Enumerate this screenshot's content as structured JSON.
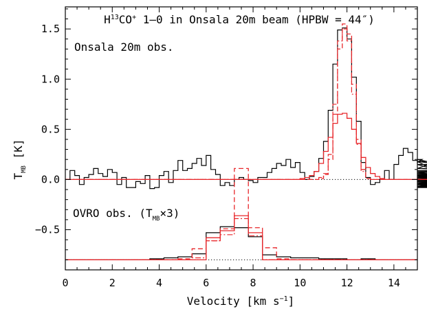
{
  "chart_data": {
    "type": "line",
    "title": {
      "prefix": "H",
      "superscript": "13",
      "middle": "CO",
      "superscript2": "+",
      "suffix": " 1–0 in Onsala 20m beam (HPBW = 44″)"
    },
    "xlabel": {
      "main": "Velocity [km s",
      "superscript": "−1",
      "close": "]"
    },
    "ylabel": {
      "main": "T",
      "subscript": "MB",
      "unit": " [K]"
    },
    "xlim": [
      0,
      15
    ],
    "ylim": [
      -0.9,
      1.72
    ],
    "x_ticks": [
      0,
      2,
      4,
      6,
      8,
      10,
      12,
      14
    ],
    "x_tick_labels": [
      "0",
      "2",
      "4",
      "6",
      "8",
      "10",
      "12",
      "14"
    ],
    "y_ticks": [
      -0.5,
      0.0,
      0.5,
      1.0,
      1.5
    ],
    "y_tick_labels": [
      "−0.5",
      "0.0",
      "0.5",
      "1.0",
      "1.5"
    ],
    "annotations": {
      "onsala": "Onsala 20m obs.",
      "ovro": {
        "prefix": "OVRO obs. (T",
        "subscript": "MB",
        "suffix": "×3)"
      }
    },
    "baselines": [
      {
        "name": "onsala-baseline",
        "y": 0.0
      },
      {
        "name": "ovro-baseline",
        "y": -0.8
      }
    ],
    "series": [
      {
        "key": "onsala-observed",
        "color": "#000000",
        "style": "solid",
        "width": 1.2,
        "offset": 0.0,
        "x_start": 0.0,
        "dv": 0.2,
        "values": [
          0.0,
          0.09,
          0.04,
          -0.05,
          0.02,
          0.05,
          0.11,
          0.06,
          0.03,
          0.1,
          0.07,
          -0.05,
          0.02,
          -0.08,
          -0.08,
          -0.02,
          -0.04,
          0.04,
          -0.09,
          -0.08,
          0.04,
          0.08,
          -0.03,
          0.09,
          0.19,
          0.09,
          0.11,
          0.16,
          0.21,
          0.14,
          0.24,
          0.1,
          0.05,
          -0.06,
          -0.03,
          -0.06,
          0.0,
          0.02,
          0.0,
          -0.01,
          -0.03,
          0.02,
          0.02,
          0.07,
          0.11,
          0.16,
          0.14,
          0.2,
          0.12,
          0.17,
          0.07,
          0.0,
          0.03,
          0.08,
          0.21,
          0.38,
          0.69,
          1.15,
          1.49,
          1.51,
          1.4,
          1.02,
          0.58,
          0.17,
          0.02,
          -0.05,
          -0.03,
          0.0,
          0.09,
          0.0,
          0.15,
          0.24,
          0.31,
          0.27,
          0.19,
          0.17,
          0.2,
          0.18,
          0.11,
          0.18,
          0.15,
          0.07,
          0.03,
          0.0,
          -0.08,
          0.02,
          0.0,
          -0.02,
          0.03,
          -0.03,
          -0.07,
          -0.08,
          0.05,
          -0.05,
          0.04,
          -0.01,
          -0.02,
          0.02,
          0.08,
          0.0,
          0.0,
          -0.04,
          0.03,
          0.0,
          -0.07,
          0.03,
          0.05,
          -0.05,
          0.0,
          -0.07,
          0.03,
          0.0,
          0.05,
          -0.04,
          0.03,
          0.0,
          -0.01,
          0.0,
          0.06,
          0.0,
          0.03,
          0.01,
          0.02,
          0.0,
          -0.06,
          0.08,
          0.01,
          -0.03,
          0.04,
          0.02,
          0.0,
          0.11,
          0.01,
          0.02,
          0.03,
          0.05,
          0.01,
          0.0,
          0.02,
          0.04,
          0.0,
          0.03,
          0.0,
          0.04,
          0.0,
          0.0,
          0.0,
          0.09,
          0.06,
          -0.02
        ]
      },
      {
        "key": "onsala-model-dashed",
        "color": "#e8262a",
        "style": "dashed",
        "width": 1.3,
        "offset": 0.0,
        "x_start": 0.0,
        "dv": 0.2,
        "values": [
          0,
          0,
          0,
          0,
          0,
          0,
          0,
          0,
          0,
          0,
          0,
          0,
          0,
          0,
          0,
          0,
          0,
          0,
          0,
          0,
          0,
          0,
          0,
          0,
          0,
          0,
          0,
          0,
          0,
          0,
          0,
          0,
          0,
          0,
          0,
          0,
          0,
          0,
          0,
          0,
          0,
          0,
          0,
          0,
          0,
          0,
          0,
          0,
          0,
          0,
          0,
          0,
          0,
          0,
          0.01,
          0.05,
          0.2,
          0.65,
          1.3,
          1.55,
          1.45,
          0.95,
          0.4,
          0.1,
          0.01,
          0,
          0,
          0,
          0,
          0,
          0,
          0,
          0,
          0,
          0,
          0,
          0,
          0,
          0,
          0
        ]
      },
      {
        "key": "onsala-model-solid",
        "color": "#e8262a",
        "style": "solid",
        "width": 1.3,
        "offset": 0.0,
        "x_start": 0.0,
        "dv": 0.2,
        "values": [
          0,
          0,
          0,
          0,
          0,
          0,
          0,
          0,
          0,
          0,
          0,
          0,
          0,
          0,
          0,
          0,
          0,
          0,
          0,
          0,
          0,
          0,
          0,
          0,
          0,
          0,
          0,
          0,
          0,
          0,
          0,
          0,
          0,
          0,
          0,
          0,
          0,
          0,
          0,
          0,
          0,
          0,
          0,
          0,
          0,
          0,
          0,
          0,
          0,
          0,
          0.01,
          0.02,
          0.04,
          0.08,
          0.16,
          0.28,
          0.42,
          0.56,
          0.65,
          0.66,
          0.61,
          0.5,
          0.36,
          0.22,
          0.12,
          0.06,
          0.03,
          0.01,
          0,
          0,
          0,
          0,
          0,
          0,
          0,
          0,
          0,
          0,
          0,
          0
        ]
      },
      {
        "key": "onsala-model-dashdot",
        "color": "#e8262a",
        "style": "dashdot",
        "width": 1.2,
        "offset": 0.0,
        "x_start": 0.0,
        "dv": 0.2,
        "values": [
          0,
          0,
          0,
          0,
          0,
          0,
          0,
          0,
          0,
          0,
          0,
          0,
          0,
          0,
          0,
          0,
          0,
          0,
          0,
          0,
          0,
          0,
          0,
          0,
          0,
          0,
          0,
          0,
          0,
          0,
          0,
          0,
          0,
          0,
          0,
          0,
          0,
          0,
          0,
          0,
          0,
          0,
          0,
          0,
          0,
          0,
          0,
          0,
          0,
          0,
          0,
          0,
          0,
          0,
          0.02,
          0.06,
          0.25,
          0.75,
          1.38,
          1.5,
          1.38,
          0.85,
          0.35,
          0.08,
          0.01,
          0,
          0,
          0,
          0,
          0,
          0,
          0,
          0,
          0,
          0,
          0,
          0,
          0,
          0,
          0
        ]
      },
      {
        "key": "ovro-observed",
        "color": "#000000",
        "style": "solid",
        "width": 1.2,
        "offset": -0.8,
        "x_start": 0.0,
        "dv": 0.6,
        "values": [
          0.0,
          0.0,
          0.0,
          0.0,
          0.0,
          0.0,
          0.01,
          0.02,
          0.03,
          0.06,
          0.27,
          0.33,
          0.32,
          0.23,
          0.05,
          0.03,
          0.02,
          0.02,
          0.01,
          0.01,
          0.0,
          0.01,
          0.0,
          0.0,
          0.0
        ]
      },
      {
        "key": "ovro-model-solid",
        "color": "#e8262a",
        "style": "solid",
        "width": 1.3,
        "offset": -0.8,
        "x_start": 0.0,
        "dv": 0.6,
        "values": [
          0,
          0,
          0,
          0,
          0,
          0,
          0,
          0,
          0,
          0.0,
          0.22,
          0.29,
          0.44,
          0.27,
          0.0,
          0,
          0,
          0,
          0,
          0,
          0,
          0,
          0,
          0,
          0
        ]
      },
      {
        "key": "ovro-model-dashed",
        "color": "#e8262a",
        "style": "dashed",
        "width": 1.3,
        "offset": -0.8,
        "x_start": 0.0,
        "dv": 0.6,
        "values": [
          0,
          0,
          0,
          0,
          0,
          0,
          0,
          0,
          0.01,
          0.11,
          0.19,
          0.31,
          0.91,
          0.32,
          0.12,
          0.01,
          0,
          0,
          0,
          0,
          0,
          0,
          0,
          0,
          0
        ]
      },
      {
        "key": "ovro-model-dashdot",
        "color": "#e8262a",
        "style": "dashdot",
        "width": 1.2,
        "offset": -0.8,
        "x_start": 0.0,
        "dv": 0.6,
        "values": [
          0,
          0,
          0,
          0,
          0,
          0,
          0,
          0,
          0,
          0.02,
          0.19,
          0.25,
          0.41,
          0.24,
          0.0,
          0,
          0,
          0,
          0,
          0,
          0,
          0,
          0,
          0,
          0
        ]
      }
    ]
  }
}
